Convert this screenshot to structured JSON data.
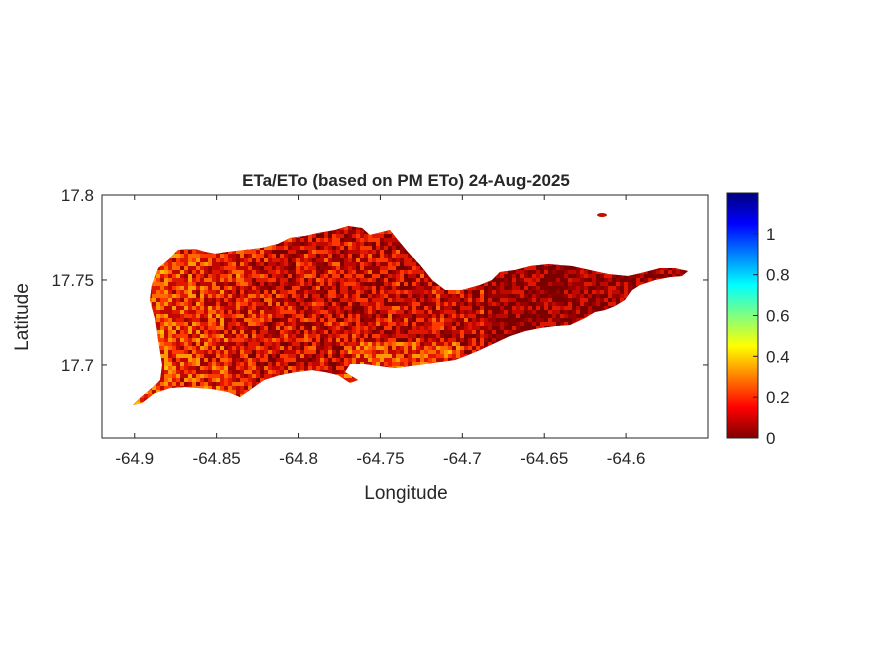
{
  "title": "ETa/ETo (based on PM ETo) 24-Aug-2025",
  "xlabel": "Longitude",
  "ylabel": "Latitude",
  "x_ticks": [
    "-64.9",
    "-64.85",
    "-64.8",
    "-64.75",
    "-64.7",
    "-64.65",
    "-64.6"
  ],
  "y_ticks": [
    "17.8",
    "17.75",
    "17.7"
  ],
  "colorbar": {
    "ticks": [
      "0",
      "0.2",
      "0.4",
      "0.6",
      "0.8",
      "1"
    ],
    "range": [
      0,
      1.2
    ],
    "colormap": "jet"
  },
  "chart_data": {
    "type": "heatmap",
    "xlabel": "Longitude",
    "ylabel": "Latitude",
    "xlim": [
      -64.92,
      -64.55
    ],
    "ylim": [
      17.657,
      17.8
    ],
    "clim": [
      0,
      1.2
    ],
    "colors": {
      "low": "#800000",
      "mid": "#ff2000",
      "high": "#ffd000"
    }
  }
}
